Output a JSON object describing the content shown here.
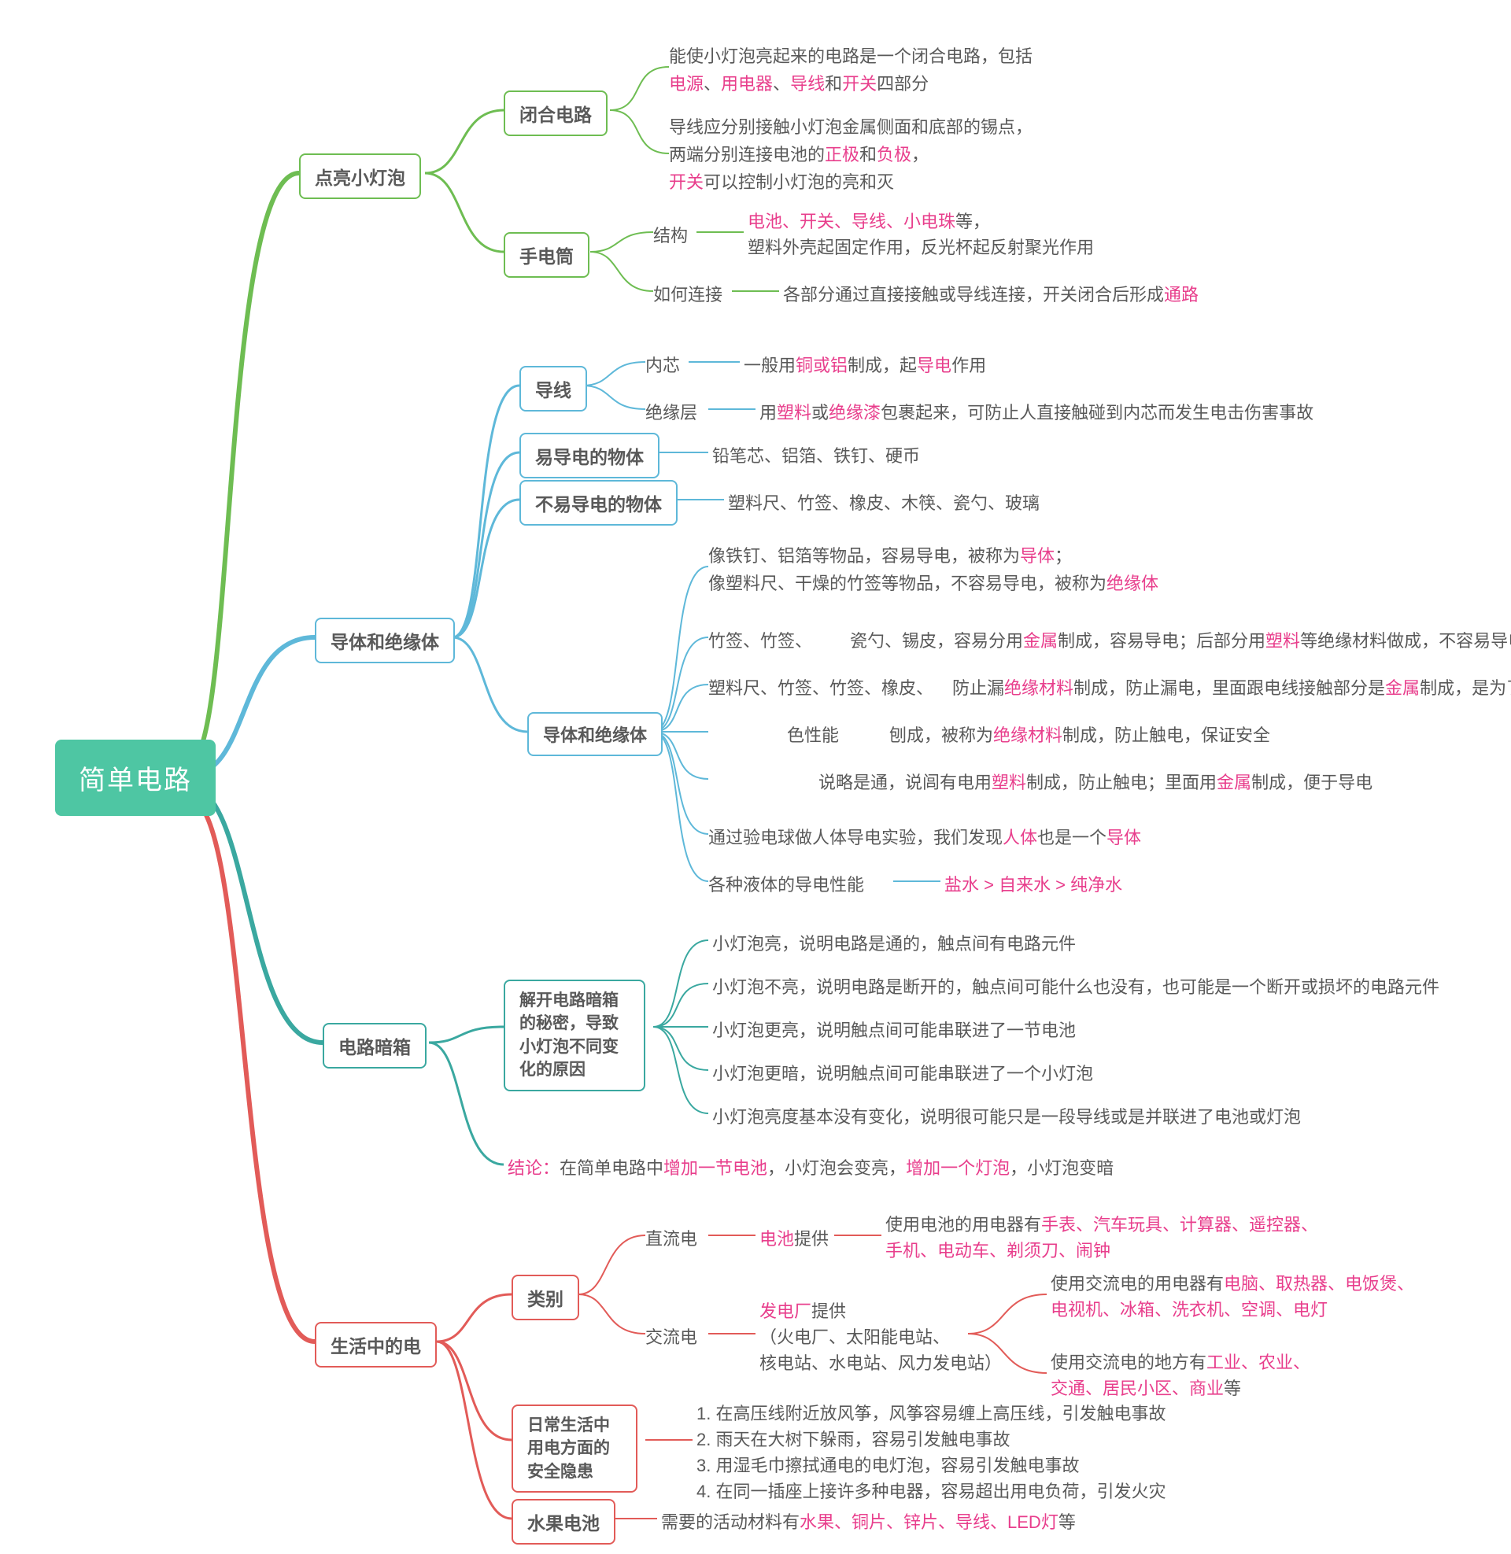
{
  "root": "简单电路",
  "colors": {
    "green": "#6ebd52",
    "blue": "#5eb8d9",
    "teal": "#3aa8a0",
    "red": "#e25b58",
    "magenta": "#e83e8c",
    "text": "#595959",
    "rootBg": "#4ec6a3"
  },
  "branches": [
    {
      "id": "b1",
      "label": "点亮小灯泡",
      "color": "#6ebd52",
      "children": [
        {
          "id": "b1c1",
          "label": "闭合电路",
          "leaves": [
            {
              "id": "b1c1l1",
              "segments": [
                [
                  "能使小灯泡亮起来的电路是一个闭合电路，包括",
                  0
                ]
              ]
            },
            {
              "id": "b1c1l2",
              "segments": [
                [
                  "电源",
                  1
                ],
                [
                  "、",
                  0
                ],
                [
                  "用电器",
                  1
                ],
                [
                  "、",
                  0
                ],
                [
                  "导线",
                  1
                ],
                [
                  "和",
                  0
                ],
                [
                  "开关",
                  1
                ],
                [
                  "四部分",
                  0
                ]
              ]
            },
            {
              "id": "b1c1l3",
              "segments": [
                [
                  "导线应分别接触小灯泡金属侧面和底部的锡点，",
                  0
                ]
              ]
            },
            {
              "id": "b1c1l4",
              "segments": [
                [
                  "两端分别连接电池的",
                  0
                ],
                [
                  "正极",
                  1
                ],
                [
                  "和",
                  0
                ],
                [
                  "负极",
                  1
                ],
                [
                  "，",
                  0
                ]
              ]
            },
            {
              "id": "b1c1l5",
              "segments": [
                [
                  "开关",
                  1
                ],
                [
                  "可以控制小灯泡的亮和灭",
                  0
                ]
              ]
            }
          ]
        },
        {
          "id": "b1c2",
          "label": "手电筒",
          "children": [
            {
              "id": "b1c2a",
              "label": "结构",
              "leaf": {
                "segments": [
                  [
                    "电池、开关、导线、小电珠",
                    1
                  ],
                  [
                    "等，",
                    0
                  ],
                  [
                    "\n塑料外壳起固定作用，反光杯起反射聚光作用",
                    0
                  ]
                ]
              }
            },
            {
              "id": "b1c2b",
              "label": "如何连接",
              "leaf": {
                "segments": [
                  [
                    "各部分通过直接接触或导线连接，开关闭合后形成",
                    0
                  ],
                  [
                    "通路",
                    1
                  ]
                ]
              }
            }
          ]
        }
      ]
    },
    {
      "id": "b2",
      "label": "导体和绝缘体",
      "color": "#5eb8d9",
      "children": [
        {
          "id": "b2c1",
          "label": "导线",
          "children": [
            {
              "id": "b2c1a",
              "label": "内芯",
              "leaf": {
                "segments": [
                  [
                    "一般用",
                    0
                  ],
                  [
                    "铜或铝",
                    1
                  ],
                  [
                    "制成，起",
                    0
                  ],
                  [
                    "导电",
                    1
                  ],
                  [
                    "作用",
                    0
                  ]
                ]
              }
            },
            {
              "id": "b2c1b",
              "label": "绝缘层",
              "leaf": {
                "segments": [
                  [
                    "用",
                    0
                  ],
                  [
                    "塑料",
                    1
                  ],
                  [
                    "或",
                    0
                  ],
                  [
                    "绝缘漆",
                    1
                  ],
                  [
                    "包裹起来，可防止人直接触碰到内芯而发生电击伤害事故",
                    0
                  ]
                ]
              }
            }
          ]
        },
        {
          "id": "b2c2",
          "label": "易导电的物体",
          "leaf": {
            "segments": [
              [
                "铅笔芯、铝箔、铁钉、硬币",
                0
              ]
            ]
          }
        },
        {
          "id": "b2c3",
          "label": "不易导电的物体",
          "leaf": {
            "segments": [
              [
                "塑料尺、竹签、橡皮、木筷、瓷勺、玻璃",
                0
              ]
            ]
          }
        },
        {
          "id": "b2c4",
          "label": "导体和绝缘体",
          "leaves": [
            {
              "id": "b2c4l1",
              "segments": [
                [
                  "像铁钉、铝箔等物品，容易导电，被称为",
                  0
                ],
                [
                  "导体",
                  1
                ],
                [
                  "；",
                  0
                ]
              ]
            },
            {
              "id": "b2c4l2",
              "segments": [
                [
                  "像塑料尺、干燥的竹签等物品，不容易导电，被称为",
                  0
                ],
                [
                  "绝缘体",
                  1
                ]
              ]
            },
            {
              "id": "b2c4l3",
              "pre": "竹签、竹签、",
              "segments": [
                [
                  "瓷勺、锡皮，容易分用",
                  0
                ],
                [
                  "金属",
                  1
                ],
                [
                  "制成，容易导电；后部分用",
                  0
                ],
                [
                  "塑料",
                  1
                ],
                [
                  "等绝缘材料做成，不容易导电",
                  0
                ]
              ]
            },
            {
              "id": "b2c4l4",
              "pre": "塑料尺、竹签、竹签、橡皮、",
              "segments": [
                [
                  "防止漏",
                  0
                ],
                [
                  "绝缘材料",
                  1
                ],
                [
                  "制成，防止漏电，里面跟电线接触部分是",
                  0
                ],
                [
                  "金属",
                  1
                ],
                [
                  "制成，是为了导电",
                  0
                ]
              ]
            },
            {
              "id": "b2c4l5",
              "pre": "色性能",
              "segments": [
                [
                  "刨成，被称为",
                  0
                ],
                [
                  "绝缘材料",
                  1
                ],
                [
                  "制成，防止触电，保证安全",
                  0
                ]
              ]
            },
            {
              "id": "b2c4l6",
              "segments": [
                [
                  "说略是通，说闾有电用",
                  0
                ],
                [
                  "塑料",
                  1
                ],
                [
                  "制成，防止触电；里面用",
                  0
                ],
                [
                  "金属",
                  1
                ],
                [
                  "制成，便于导电",
                  0
                ]
              ]
            },
            {
              "id": "b2c4l7",
              "segments": [
                [
                  "通过验电球做人体导电实验，我们发现",
                  0
                ],
                [
                  "人体",
                  1
                ],
                [
                  "也是一个",
                  0
                ],
                [
                  "导体",
                  1
                ]
              ]
            },
            {
              "id": "b2c4l8",
              "pre": "各种液体的导电性能",
              "segments": [
                [
                  "盐水 > 自来水 > 纯净水",
                  1
                ]
              ]
            }
          ]
        }
      ]
    },
    {
      "id": "b3",
      "label": "电路暗箱",
      "color": "#3aa8a0",
      "children": [
        {
          "id": "b3c1",
          "label": "解开电路暗箱的秘密，导致小灯泡不同变化的原因",
          "leaves": [
            {
              "id": "b3c1l1",
              "segments": [
                [
                  "小灯泡亮，说明电路是通的，触点间有电路元件",
                  0
                ]
              ]
            },
            {
              "id": "b3c1l2",
              "segments": [
                [
                  "小灯泡不亮，说明电路是断开的，触点间可能什么也没有，也可能是一个断开或损坏的电路元件",
                  0
                ]
              ]
            },
            {
              "id": "b3c1l3",
              "segments": [
                [
                  "小灯泡更亮，说明触点间可能串联进了一节电池",
                  0
                ]
              ]
            },
            {
              "id": "b3c1l4",
              "segments": [
                [
                  "小灯泡更暗，说明触点间可能串联进了一个小灯泡",
                  0
                ]
              ]
            },
            {
              "id": "b3c1l5",
              "segments": [
                [
                  "小灯泡亮度基本没有变化，说明很可能只是一段导线或是并联进了电池或灯泡",
                  0
                ]
              ]
            }
          ]
        },
        {
          "id": "b3c2",
          "leaf": {
            "segments": [
              [
                "结论：",
                1
              ],
              [
                "在简单电路中",
                0
              ],
              [
                "增加一节电池",
                1
              ],
              [
                "，小灯泡会变亮，",
                0
              ],
              [
                "增加一个灯泡",
                1
              ],
              [
                "，小灯泡变暗",
                0
              ]
            ]
          }
        }
      ]
    },
    {
      "id": "b4",
      "label": "生活中的电",
      "color": "#e25b58",
      "children": [
        {
          "id": "b4c1",
          "label": "类别",
          "children": [
            {
              "id": "b4c1a",
              "label": "直流电",
              "mid": {
                "segments": [
                  [
                    "电池",
                    1
                  ],
                  [
                    "提供",
                    0
                  ]
                ]
              },
              "leaf": {
                "segments": [
                  [
                    "使用电池的用电器有",
                    0
                  ],
                  [
                    "手表、汽车玩具、计算器、遥控器、\n手机、电动车、剃须刀、闹钟",
                    1
                  ]
                ]
              }
            },
            {
              "id": "b4c1b",
              "label": "交流电",
              "mid": {
                "segments": [
                  [
                    "发电厂",
                    1
                  ],
                  [
                    "提供\n（火电厂、太阳能电站、\n核电站、水电站、风力发电站）",
                    0
                  ]
                ]
              },
              "leaves": [
                {
                  "id": "b4c1bl1",
                  "segments": [
                    [
                      "使用交流电的用电器有",
                      0
                    ],
                    [
                      "电脑、取热器、电饭煲、\n电视机、冰箱、洗衣机、空调、电灯",
                      1
                    ]
                  ]
                },
                {
                  "id": "b4c1bl2",
                  "segments": [
                    [
                      "使用交流电的地方有",
                      0
                    ],
                    [
                      "工业、农业、\n交通、居民小区、商业",
                      1
                    ],
                    [
                      "等",
                      0
                    ]
                  ]
                }
              ]
            }
          ]
        },
        {
          "id": "b4c2",
          "label": "日常生活中用电方面的安全隐患",
          "leaf": {
            "segments": [
              [
                "1. 在高压线附近放风筝，风筝容易缠上高压线，引发触电事故\n2. 雨天在大树下躲雨，容易引发触电事故\n3. 用湿毛巾擦拭通电的电灯泡，容易引发触电事故\n4. 在同一插座上接许多种电器，容易超出用电负荷，引发火灾",
                0
              ]
            ]
          }
        },
        {
          "id": "b4c3",
          "label": "水果电池",
          "leaf": {
            "segments": [
              [
                "需要的活动材料有",
                0
              ],
              [
                "水果、铜片、锌片、导线、LED灯",
                1
              ],
              [
                "等",
                0
              ]
            ]
          }
        }
      ]
    }
  ]
}
